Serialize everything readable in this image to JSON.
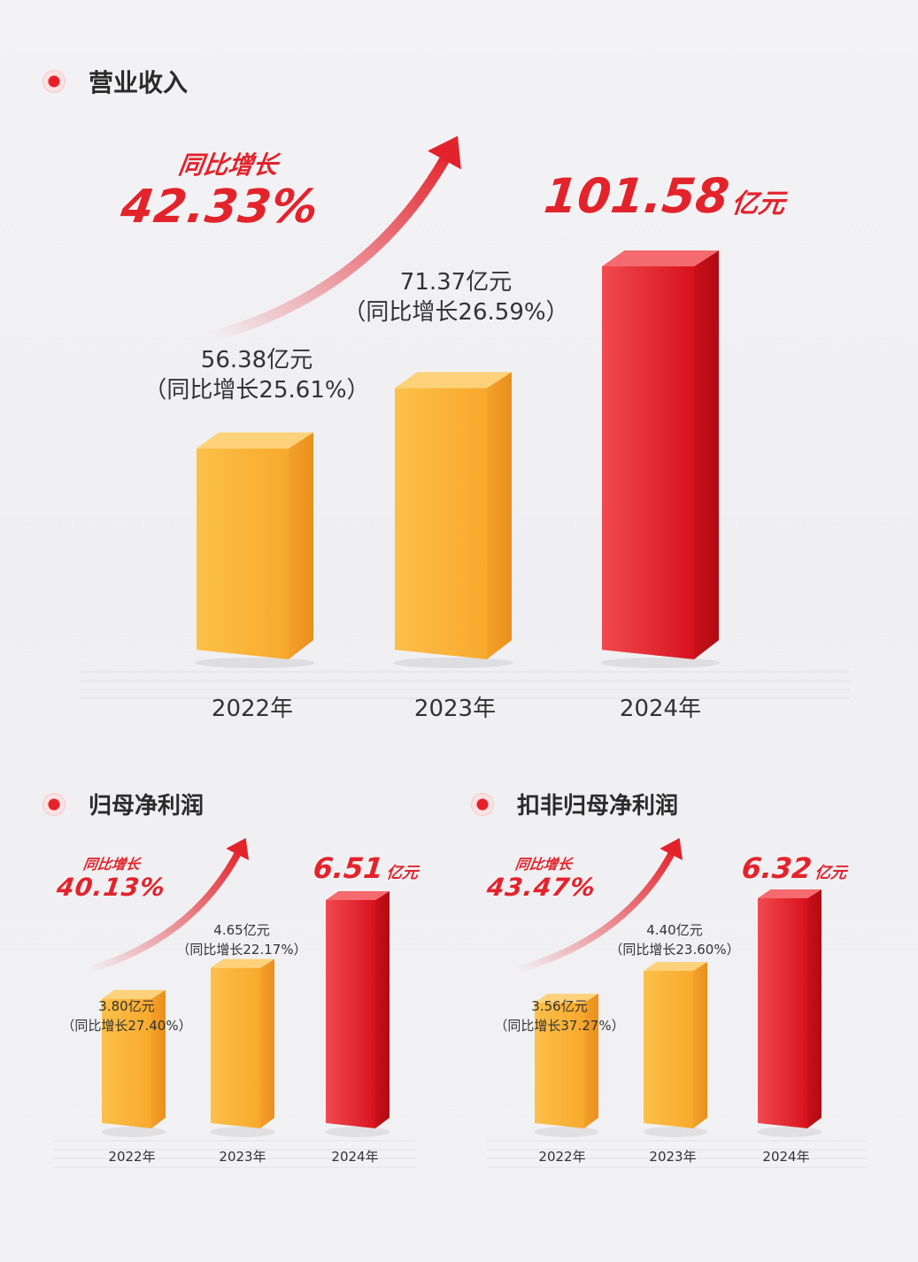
{
  "sections": [
    {
      "title": "营业收入",
      "growth": {
        "label": "同比增长",
        "value": "42.33%"
      },
      "highlight": {
        "value": "101.58",
        "unit": "亿元"
      },
      "bars": [
        {
          "year": "2022年",
          "value_text": "56.38亿元",
          "growth_text": "（同比增长25.61%）"
        },
        {
          "year": "2023年",
          "value_text": "71.37亿元",
          "growth_text": "（同比增长26.59%）"
        },
        {
          "year": "2024年"
        }
      ]
    },
    {
      "title": "归母净利润",
      "growth": {
        "label": "同比增长",
        "value": "40.13%"
      },
      "highlight": {
        "value": "6.51",
        "unit": "亿元"
      },
      "bars": [
        {
          "year": "2022年",
          "value_text": "3.80亿元",
          "growth_text": "（同比增长27.40%）"
        },
        {
          "year": "2023年",
          "value_text": "4.65亿元",
          "growth_text": "（同比增长22.17%）"
        },
        {
          "year": "2024年"
        }
      ]
    },
    {
      "title": "扣非归母净利润",
      "growth": {
        "label": "同比增长",
        "value": "43.47%"
      },
      "highlight": {
        "value": "6.32",
        "unit": "亿元"
      },
      "bars": [
        {
          "year": "2022年",
          "value_text": "3.56亿元",
          "growth_text": "（同比增长37.27%）"
        },
        {
          "year": "2023年",
          "value_text": "4.40亿元",
          "growth_text": "（同比增长23.60%）"
        },
        {
          "year": "2024年"
        }
      ]
    }
  ],
  "colors": {
    "accent": "#e3232c",
    "bar_past": "#fbb63d",
    "bar_current": "#e8262f",
    "text": "#333333"
  },
  "chart_data": [
    {
      "type": "bar",
      "title": "营业收入",
      "categories": [
        "2022年",
        "2023年",
        "2024年"
      ],
      "values": [
        56.38,
        71.37,
        101.58
      ],
      "growth_pct": [
        25.61,
        26.59,
        42.33
      ]
    },
    {
      "type": "bar",
      "title": "归母净利润",
      "categories": [
        "2022年",
        "2023年",
        "2024年"
      ],
      "values": [
        3.8,
        4.65,
        6.51
      ],
      "growth_pct": [
        27.4,
        22.17,
        40.13
      ]
    },
    {
      "type": "bar",
      "title": "扣非归母净利润",
      "categories": [
        "2022年",
        "2023年",
        "2024年"
      ],
      "values": [
        3.56,
        4.4,
        6.32
      ],
      "growth_pct": [
        37.27,
        23.6,
        43.47
      ]
    }
  ]
}
